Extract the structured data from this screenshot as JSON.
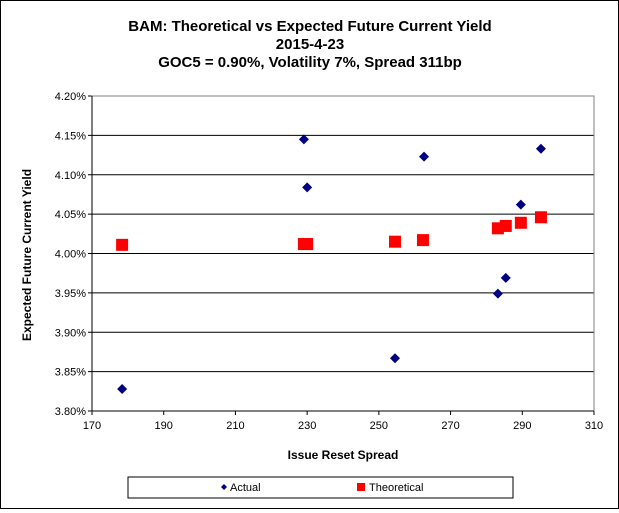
{
  "chart_data": {
    "type": "scatter",
    "title": [
      "BAM: Theoretical vs Expected Future Current Yield",
      "2015-4-23",
      "GOC5 = 0.90%, Volatility 7%, Spread 311bp"
    ],
    "xlabel": "Issue Reset Spread",
    "ylabel": "Expected Future Current Yield",
    "xlim": [
      170,
      310
    ],
    "ylim": [
      3.8,
      4.2
    ],
    "xticks": [
      170,
      190,
      210,
      230,
      250,
      270,
      290,
      310
    ],
    "yticks": [
      3.8,
      3.85,
      3.9,
      3.95,
      4.0,
      4.05,
      4.1,
      4.15,
      4.2
    ],
    "ytick_labels": [
      "3.80%",
      "3.85%",
      "3.90%",
      "3.95%",
      "4.00%",
      "4.05%",
      "4.10%",
      "4.15%",
      "4.20%"
    ],
    "grid": "horizontal",
    "legend_position": "bottom",
    "series": [
      {
        "name": "Actual",
        "color": "#000080",
        "marker": "diamond",
        "points": [
          [
            178.4,
            3.828
          ],
          [
            229.1,
            4.145
          ],
          [
            230.0,
            4.084
          ],
          [
            262.6,
            4.123
          ],
          [
            254.5,
            3.867
          ],
          [
            283.2,
            3.949
          ],
          [
            285.4,
            3.969
          ],
          [
            289.6,
            4.062
          ],
          [
            295.2,
            4.133
          ]
        ]
      },
      {
        "name": "Theoretical",
        "color": "#ff0000",
        "marker": "square",
        "points": [
          [
            178.4,
            4.011
          ],
          [
            229.1,
            4.012
          ],
          [
            230.0,
            4.012
          ],
          [
            254.5,
            4.015
          ],
          [
            262.3,
            4.017
          ],
          [
            283.2,
            4.032
          ],
          [
            285.4,
            4.035
          ],
          [
            289.6,
            4.039
          ],
          [
            295.2,
            4.046
          ]
        ]
      }
    ]
  }
}
